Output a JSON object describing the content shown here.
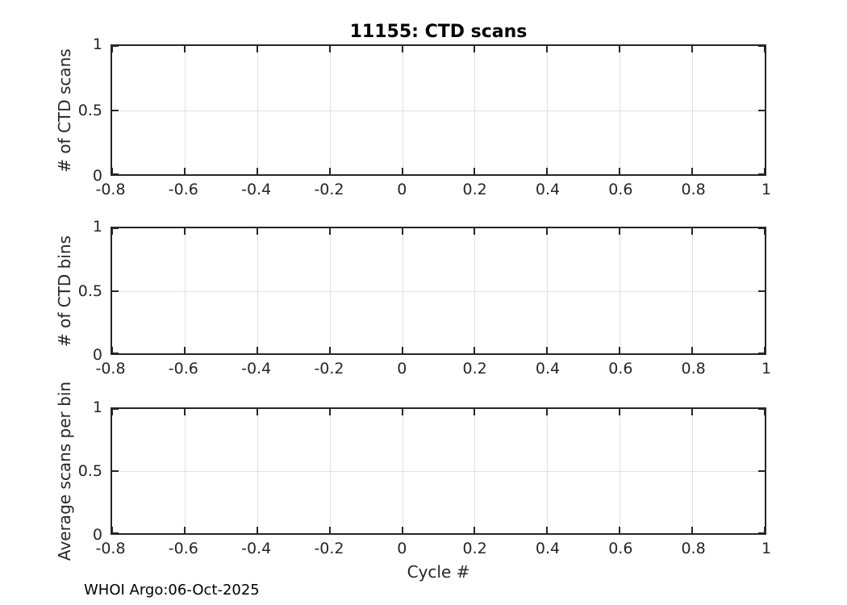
{
  "figure": {
    "title": "11155: CTD scans",
    "xlabel": "Cycle #",
    "footer": "WHOI Argo:06-Oct-2025",
    "colors": {
      "background": "#ffffff",
      "axis": "#262626",
      "grid": "#e0e0e0",
      "title_text": "#000000",
      "tick_text": "#262626"
    }
  },
  "chart_data": [
    {
      "type": "line",
      "title": "11155: CTD scans",
      "ylabel": "# of CTD scans",
      "xlabel": "",
      "xlim": [
        -0.8,
        1
      ],
      "ylim": [
        0,
        1
      ],
      "xticks": [
        -0.8,
        -0.6,
        -0.4,
        -0.2,
        0,
        0.2,
        0.4,
        0.6,
        0.8,
        1
      ],
      "yticks": [
        0,
        0.5,
        1
      ],
      "grid": true,
      "legend": null,
      "series": []
    },
    {
      "type": "line",
      "title": "",
      "ylabel": "# of CTD bins",
      "xlabel": "",
      "xlim": [
        -0.8,
        1
      ],
      "ylim": [
        0,
        1
      ],
      "xticks": [
        -0.8,
        -0.6,
        -0.4,
        -0.2,
        0,
        0.2,
        0.4,
        0.6,
        0.8,
        1
      ],
      "yticks": [
        0,
        0.5,
        1
      ],
      "grid": true,
      "legend": null,
      "series": []
    },
    {
      "type": "line",
      "title": "",
      "ylabel": "Average scans per bin",
      "xlabel": "Cycle #",
      "xlim": [
        -0.8,
        1
      ],
      "ylim": [
        0,
        1
      ],
      "xticks": [
        -0.8,
        -0.6,
        -0.4,
        -0.2,
        0,
        0.2,
        0.4,
        0.6,
        0.8,
        1
      ],
      "yticks": [
        0,
        0.5,
        1
      ],
      "grid": true,
      "legend": null,
      "series": []
    }
  ]
}
